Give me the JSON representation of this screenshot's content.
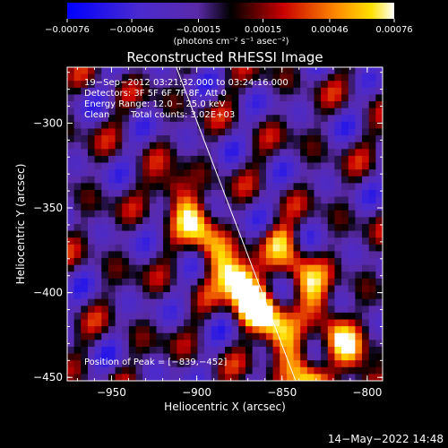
{
  "chart_data": {
    "type": "heatmap",
    "title": "Reconstructed RHESSI Image",
    "xlabel": "Heliocentric X (arcsec)",
    "ylabel": "Heliocentric Y (arcsec)",
    "xlim": [
      -976,
      -791
    ],
    "ylim": [
      -452,
      -267
    ],
    "x_ticks": [
      -950,
      -900,
      -850,
      -800
    ],
    "y_ticks": [
      -300,
      -350,
      -400,
      -450
    ],
    "x_tick_labels": [
      "−950",
      "−900",
      "−850",
      "−800"
    ],
    "y_tick_labels": [
      "−300",
      "−350",
      "−400",
      "−450"
    ],
    "colorbar": {
      "min": -0.00076,
      "max": 0.00076,
      "ticks": [
        -0.00076,
        -0.00046,
        -0.00015,
        0.00015,
        0.00046,
        0.00076
      ],
      "tick_labels": [
        "−0.00076",
        "−0.00046",
        "−0.00015",
        "0.00015",
        "0.00046",
        "0.00076"
      ],
      "unit_label": "(photons cm⁻² s⁻¹ asec⁻²)",
      "colormap": [
        "#0000ff",
        "#5a2aa8",
        "#000000",
        "#c80000",
        "#ff8800",
        "#ffffff"
      ]
    },
    "annotations": {
      "time_range": "19−Sep−2012 03:21:32.000 to 03:24:16.000",
      "detectors": "Detectors: 3F 5F 6F 7F 8F, Att 0",
      "energy_range": "Energy Range: 12.0 − 25.0 keV",
      "method": "Clean",
      "total_counts": "Total counts: 3.02E+03",
      "peak": "Position of Peak = [−839,−452]"
    },
    "limb_line": [
      [
        -912,
        -267
      ],
      [
        -842,
        -452
      ]
    ],
    "bright_ridges": [
      {
        "start": [
          -913,
          -340
        ],
        "end": [
          -868,
          -410
        ],
        "peak_value": 0.0007
      },
      {
        "start": [
          -873,
          -392
        ],
        "end": [
          -835,
          -452
        ],
        "peak_value": 0.00076
      },
      {
        "start": [
          -850,
          -370
        ],
        "end": [
          -800,
          -452
        ],
        "peak_value": 0.0006
      }
    ]
  },
  "timestamp": "14−May−2022 14:48"
}
